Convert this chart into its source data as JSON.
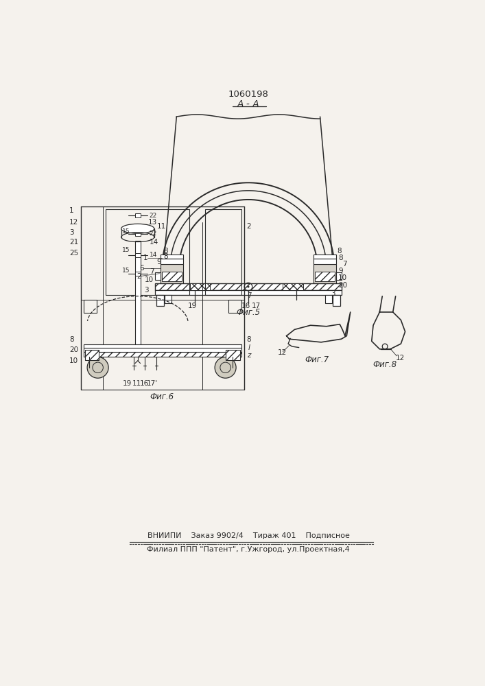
{
  "title": "1060198",
  "section_label": "A - A",
  "bg_color": "#f5f2ed",
  "line_color": "#2a2a2a",
  "fig5_label": "Фиг.5",
  "fig6_label": "Фиг.6",
  "fig7_label": "Фиг.7",
  "fig8_label": "Фиг.8",
  "bottom_text1": "ВНИИПИ    Заказ 9902/4    Тираж 401    Подписное",
  "bottom_text2": "Филиал ППП \"Патент\", г.Ужгород, ул.Проектная,4"
}
